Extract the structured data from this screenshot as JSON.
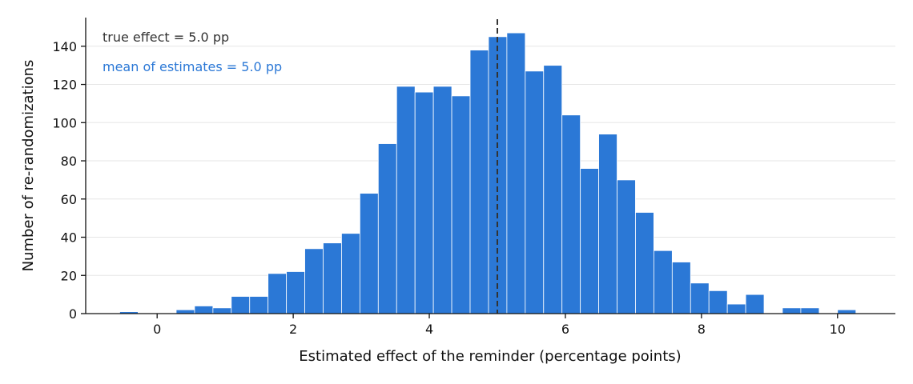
{
  "chart_data": {
    "type": "bar",
    "subtype": "histogram",
    "xlabel": "Estimated effect of the reminder (percentage points)",
    "ylabel": "Number of re-randomizations",
    "xlim": [
      -1.05,
      10.85
    ],
    "ylim": [
      0,
      155
    ],
    "x_ticks": [
      0,
      2,
      4,
      6,
      8,
      10
    ],
    "y_ticks": [
      0,
      20,
      40,
      60,
      80,
      100,
      120,
      140
    ],
    "grid": "horizontal",
    "bin_edges": [
      -0.55,
      -0.28,
      0.0,
      0.28,
      0.55,
      0.82,
      1.09,
      1.36,
      1.63,
      1.9,
      2.17,
      2.44,
      2.71,
      2.98,
      3.25,
      3.52,
      3.79,
      4.06,
      4.33,
      4.6,
      4.87,
      5.14,
      5.41,
      5.68,
      5.95,
      6.22,
      6.49,
      6.76,
      7.03,
      7.3,
      7.57,
      7.84,
      8.11,
      8.38,
      8.65,
      8.92,
      9.19,
      9.46,
      9.73,
      10.0,
      10.27
    ],
    "counts": [
      1,
      0,
      0,
      2,
      4,
      3,
      9,
      9,
      21,
      22,
      34,
      37,
      42,
      63,
      89,
      119,
      116,
      119,
      114,
      138,
      145,
      147,
      127,
      130,
      104,
      76,
      94,
      70,
      53,
      33,
      27,
      16,
      12,
      5,
      10,
      0,
      3,
      3,
      0,
      2
    ],
    "reference_line": {
      "x": 5.0,
      "style": "dashed",
      "color": "#333333"
    },
    "annotations": [
      {
        "text": "true effect = 5.0 pp",
        "color": "#333333"
      },
      {
        "text": "mean of estimates = 5.0 pp",
        "color": "#2b78d6"
      }
    ],
    "bar_color": "#2b78d6"
  }
}
